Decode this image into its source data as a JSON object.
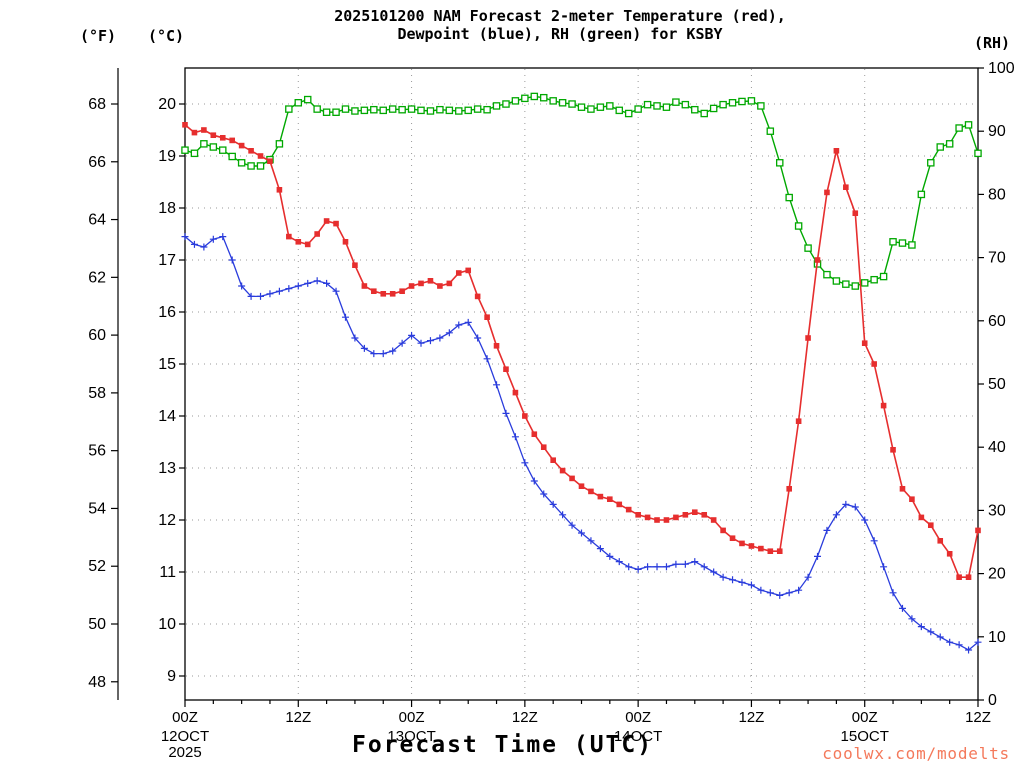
{
  "title": {
    "line1": "2025101200 NAM Forecast 2-meter Temperature (red),",
    "line2": "Dewpoint (blue), RH (green) for KSBY"
  },
  "xlabel": "Forecast Time (UTC)",
  "watermark": "coolwx.com/modelts",
  "colors": {
    "temperature": "#e62e2e",
    "dewpoint": "#2a3cdc",
    "rh": "#00a800",
    "watermark": "#f4795b",
    "grid": "#9a9a9a",
    "axis": "#000000"
  },
  "chart_data": {
    "type": "line",
    "title": "2025101200 NAM Forecast 2-meter Temperature (red), Dewpoint (blue), RH (green) for KSBY",
    "xlabel": "Forecast Time (UTC)",
    "grid": "dotted, at 12-hour intervals and each degree Celsius",
    "x_hours": {
      "start": 0,
      "end": 84,
      "step": 1
    },
    "axes": {
      "fahrenheit": {
        "label": "(°F)",
        "side": "outer-left",
        "ticks": [
          48,
          50,
          52,
          54,
          56,
          58,
          60,
          62,
          64,
          66,
          68
        ]
      },
      "celsius": {
        "label": "(°C)",
        "side": "left",
        "ticks": [
          9,
          10,
          11,
          12,
          13,
          14,
          15,
          16,
          17,
          18,
          19,
          20
        ]
      },
      "rh": {
        "label": "(RH)",
        "side": "right",
        "ticks": [
          0,
          10,
          20,
          30,
          40,
          50,
          60,
          70,
          80,
          90,
          100
        ],
        "range": [
          0,
          100
        ]
      }
    },
    "x_ticks": [
      {
        "hour": 0,
        "label": "00Z",
        "date_lines": [
          "12OCT",
          "2025"
        ]
      },
      {
        "hour": 12,
        "label": "12Z"
      },
      {
        "hour": 24,
        "label": "00Z",
        "date_lines": [
          "13OCT"
        ]
      },
      {
        "hour": 36,
        "label": "12Z"
      },
      {
        "hour": 48,
        "label": "00Z",
        "date_lines": [
          "14OCT"
        ]
      },
      {
        "hour": 60,
        "label": "12Z"
      },
      {
        "hour": 72,
        "label": "00Z",
        "date_lines": [
          "15OCT"
        ]
      },
      {
        "hour": 84,
        "label": "12Z"
      }
    ],
    "series": [
      {
        "name": "RH",
        "slug": "relative-humidity",
        "color_key": "rh",
        "axis": "rh",
        "units": "%",
        "marker": "open-square",
        "values": [
          87,
          86.5,
          88,
          87.5,
          87,
          86,
          85,
          84.5,
          84.5,
          85.5,
          88,
          93.5,
          94.5,
          95,
          93.5,
          93,
          93,
          93.5,
          93.2,
          93.3,
          93.4,
          93.3,
          93.5,
          93.4,
          93.5,
          93.3,
          93.2,
          93.4,
          93.3,
          93.2,
          93.3,
          93.5,
          93.4,
          94.0,
          94.3,
          94.8,
          95.2,
          95.5,
          95.3,
          94.8,
          94.5,
          94.3,
          93.8,
          93.5,
          93.8,
          94.0,
          93.3,
          92.8,
          93.5,
          94.2,
          94.0,
          93.8,
          94.6,
          94.2,
          93.4,
          92.8,
          93.6,
          94.2,
          94.5,
          94.7,
          94.8,
          94.0,
          90.0,
          85.0,
          79.5,
          75.0,
          71.5,
          69.0,
          67.3,
          66.3,
          65.8,
          65.5,
          66.0,
          66.5,
          67.0,
          72.5,
          72.3,
          72.0,
          80.0,
          85.0,
          87.5,
          88.0,
          90.5,
          91.0,
          86.5
        ]
      },
      {
        "name": "Dewpoint",
        "slug": "dewpoint",
        "color_key": "dewpoint",
        "axis": "celsius",
        "units": "°C",
        "marker": "plus",
        "values": [
          17.45,
          17.3,
          17.25,
          17.4,
          17.45,
          17.0,
          16.5,
          16.3,
          16.3,
          16.35,
          16.4,
          16.45,
          16.5,
          16.55,
          16.6,
          16.55,
          16.4,
          15.9,
          15.5,
          15.3,
          15.2,
          15.2,
          15.25,
          15.4,
          15.55,
          15.4,
          15.45,
          15.5,
          15.6,
          15.75,
          15.8,
          15.5,
          15.1,
          14.6,
          14.05,
          13.6,
          13.1,
          12.75,
          12.5,
          12.3,
          12.1,
          11.9,
          11.75,
          11.6,
          11.45,
          11.3,
          11.2,
          11.1,
          11.05,
          11.1,
          11.1,
          11.1,
          11.15,
          11.15,
          11.2,
          11.1,
          11.0,
          10.9,
          10.85,
          10.8,
          10.75,
          10.65,
          10.6,
          10.55,
          10.6,
          10.65,
          10.9,
          11.3,
          11.8,
          12.1,
          12.3,
          12.25,
          12.0,
          11.6,
          11.1,
          10.6,
          10.3,
          10.1,
          9.95,
          9.85,
          9.75,
          9.65,
          9.6,
          9.5,
          9.65
        ]
      },
      {
        "name": "2-meter Temperature",
        "slug": "temperature",
        "color_key": "temperature",
        "axis": "celsius",
        "units": "°C",
        "marker": "filled-square",
        "values": [
          19.6,
          19.45,
          19.5,
          19.4,
          19.35,
          19.3,
          19.2,
          19.1,
          19.0,
          18.9,
          18.35,
          17.45,
          17.35,
          17.3,
          17.5,
          17.75,
          17.7,
          17.35,
          16.9,
          16.5,
          16.4,
          16.35,
          16.35,
          16.4,
          16.5,
          16.55,
          16.6,
          16.5,
          16.55,
          16.75,
          16.8,
          16.3,
          15.9,
          15.35,
          14.9,
          14.45,
          14.0,
          13.65,
          13.4,
          13.15,
          12.95,
          12.8,
          12.65,
          12.55,
          12.45,
          12.4,
          12.3,
          12.2,
          12.1,
          12.05,
          12.0,
          12.0,
          12.05,
          12.1,
          12.15,
          12.1,
          12.0,
          11.8,
          11.65,
          11.55,
          11.5,
          11.45,
          11.4,
          11.4,
          12.6,
          13.9,
          15.5,
          17.0,
          18.3,
          19.1,
          18.4,
          17.9,
          15.4,
          15.0,
          14.2,
          13.35,
          12.6,
          12.4,
          12.05,
          11.9,
          11.6,
          11.35,
          10.9,
          10.9,
          11.8
        ]
      }
    ]
  }
}
